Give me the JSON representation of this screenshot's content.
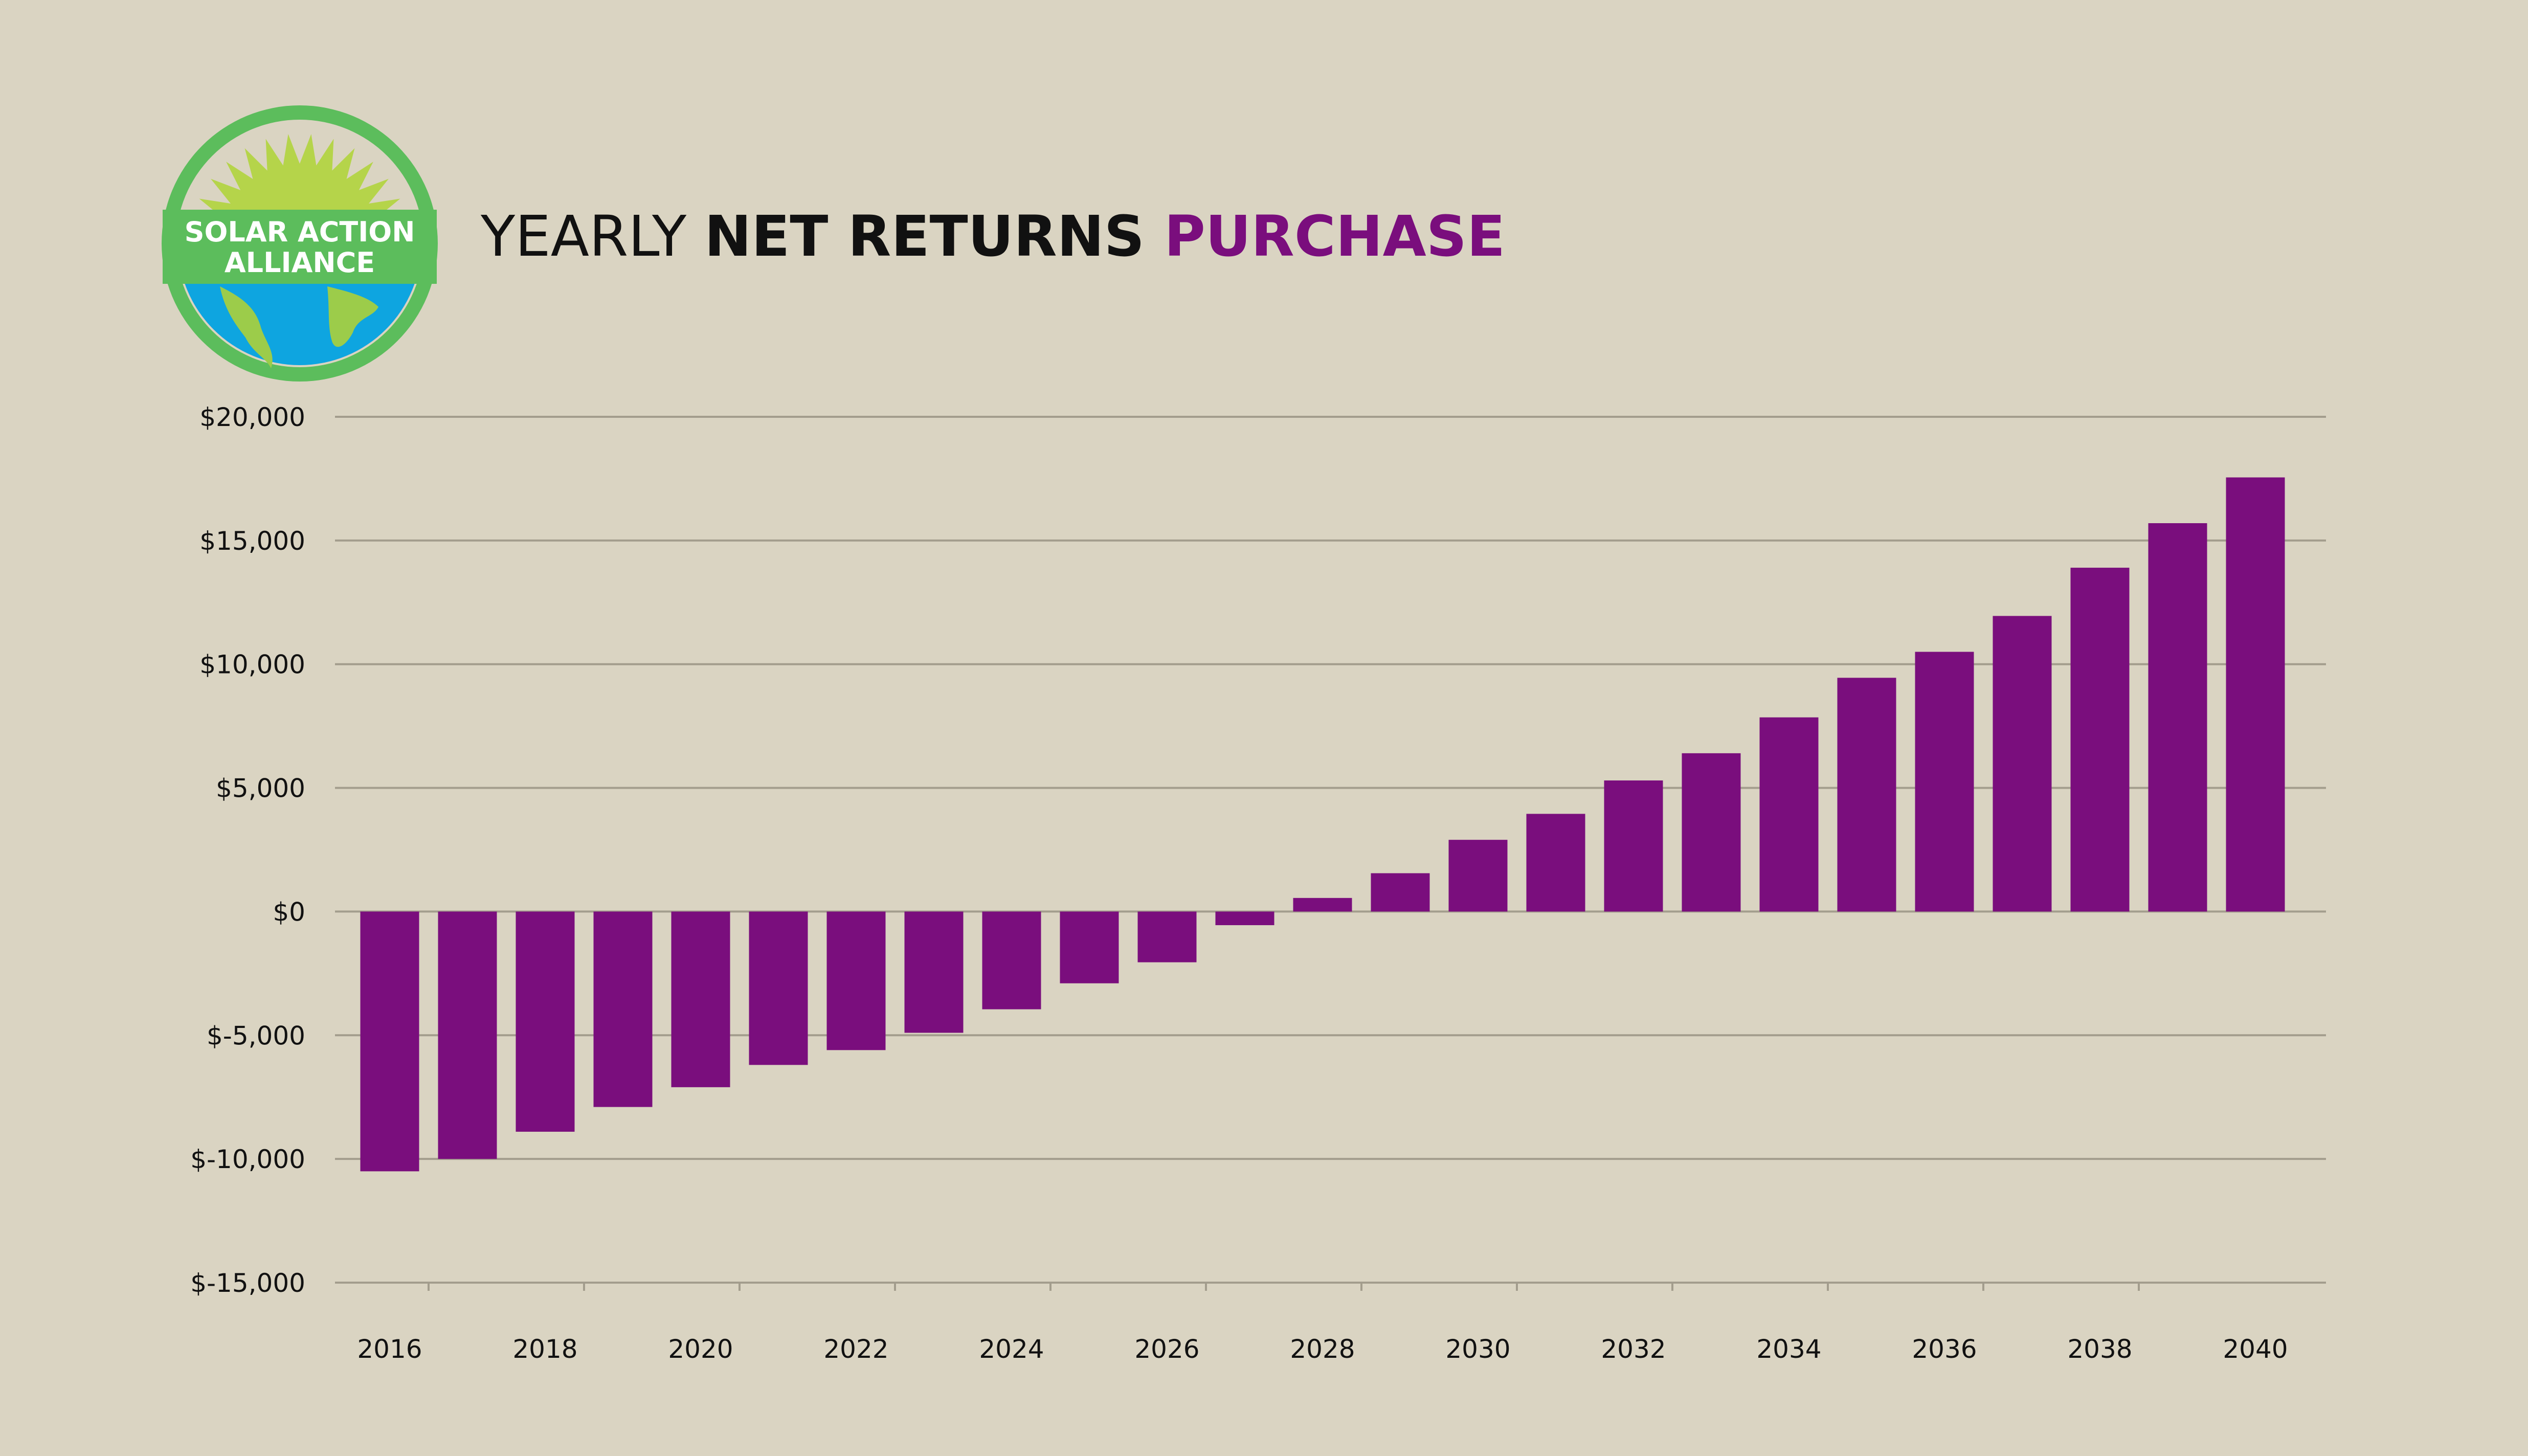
{
  "logo": {
    "line1": "SOLAR ACTION",
    "line2": "ALLIANCE",
    "colors": {
      "ring": "#5cbd5c",
      "sun": "#b5d44a",
      "ocean": "#0ea5e0",
      "land": "#9ccc4a",
      "band": "#5cbd5c"
    }
  },
  "chart_data": {
    "type": "bar",
    "title_parts": [
      {
        "text": "YEARLY ",
        "weight": "normal",
        "color": "#111111"
      },
      {
        "text": "NET RETURNS ",
        "weight": "bold",
        "color": "#111111"
      },
      {
        "text": "PURCHASE",
        "weight": "bold",
        "color": "#7a0e7d"
      }
    ],
    "xlabel": "",
    "ylabel": "",
    "ylim": [
      -15000,
      20000
    ],
    "y_ticks": [
      {
        "value": 20000,
        "label": "$20,000"
      },
      {
        "value": 15000,
        "label": "$15,000"
      },
      {
        "value": 10000,
        "label": "$10,000"
      },
      {
        "value": 5000,
        "label": "$5,000"
      },
      {
        "value": 0,
        "label": "$0"
      },
      {
        "value": -5000,
        "label": "$-5,000"
      },
      {
        "value": -10000,
        "label": "$-10,000"
      },
      {
        "value": -15000,
        "label": "$-15,000"
      }
    ],
    "categories": [
      2016,
      2017,
      2018,
      2019,
      2020,
      2021,
      2022,
      2023,
      2024,
      2025,
      2026,
      2027,
      2028,
      2029,
      2030,
      2031,
      2032,
      2033,
      2034,
      2035,
      2036,
      2037,
      2038,
      2039,
      2040
    ],
    "x_tick_labels": [
      "2016",
      "2018",
      "2020",
      "2022",
      "2024",
      "2026",
      "2028",
      "2030",
      "2032",
      "2034",
      "2036",
      "2038",
      "2040"
    ],
    "values": [
      -10500,
      -10000,
      -8900,
      -7900,
      -7100,
      -6200,
      -5600,
      -4900,
      -3950,
      -2900,
      -2050,
      -550,
      550,
      1550,
      2900,
      3950,
      5300,
      6400,
      7850,
      9450,
      10500,
      11950,
      13900,
      15700,
      17550
    ],
    "bar_color": "#7a0e7d",
    "grid": true,
    "legend": "none"
  }
}
